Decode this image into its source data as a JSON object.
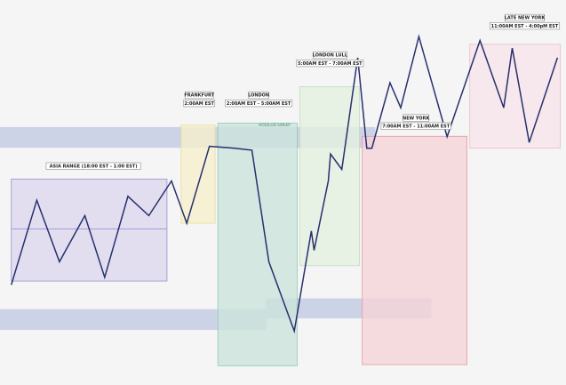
{
  "chart_data": {
    "type": "line",
    "title": "",
    "xlabel": "",
    "ylabel": "",
    "xlim": [
      0,
      100
    ],
    "ylim": [
      0,
      100
    ],
    "price_path": {
      "x": [
        2,
        6.5,
        10.5,
        15,
        18.5,
        22.6,
        26.3,
        30.3,
        33,
        37,
        41.5,
        44.5,
        47.5,
        52,
        55,
        55.5,
        58,
        58.4,
        60.4,
        63.2,
        64.8,
        65.7,
        68.9,
        70.8,
        74,
        79,
        84.8,
        89,
        90.5,
        93.5,
        98.5
      ],
      "y": [
        26,
        48,
        32,
        44,
        28,
        49,
        44,
        53,
        42,
        62,
        61.5,
        61,
        32,
        14,
        40,
        35,
        53,
        60,
        56,
        85,
        61.5,
        61.5,
        78.5,
        72,
        90.5,
        64.5,
        89.5,
        72,
        87.5,
        63,
        85
      ]
    },
    "range_lines": [
      {
        "name": "Asia range mid",
        "y": 40.5,
        "x_from": 2,
        "x_to": 29.5,
        "color": "#8f85d0"
      }
    ],
    "zones": [
      {
        "name": "asia",
        "x": [
          2,
          29.5
        ],
        "y": [
          27,
          53.5
        ],
        "fill": "#ddd8ee",
        "stroke": "#9a90d0"
      },
      {
        "name": "frankfurt",
        "x": [
          32,
          38
        ],
        "y": [
          42,
          67.5
        ],
        "fill": "#f6f0cc",
        "stroke": "#e9dc9a"
      },
      {
        "name": "london",
        "x": [
          38.5,
          52.5
        ],
        "y": [
          5,
          68
        ],
        "fill": "#cce4dc",
        "stroke": "#8fc8b6"
      },
      {
        "name": "london_lull",
        "x": [
          53,
          63.5
        ],
        "y": [
          31,
          77.5
        ],
        "fill": "#e4f0e0",
        "stroke": "#c2dcbc"
      },
      {
        "name": "new_york",
        "x": [
          64,
          82.5
        ],
        "y": [
          5.3,
          64.6
        ],
        "fill": "#f5d5d8",
        "stroke": "#e29aa2"
      },
      {
        "name": "late_new_york",
        "x": [
          83,
          99
        ],
        "y": [
          61.5,
          88.5
        ],
        "fill": "#f6e5ea",
        "stroke": "#e7bfcb"
      }
    ],
    "bands": [
      {
        "name": "upper liquidity",
        "x": [
          0,
          66.3
        ],
        "y": [
          61.6,
          67
        ],
        "fill": "#c6cde3"
      },
      {
        "name": "lower liquidity",
        "x": [
          0,
          47
        ],
        "y": [
          14.3,
          19.7
        ],
        "fill": "#c6cde3"
      },
      {
        "name": "lower liquidity extension",
        "x": [
          47,
          76.2
        ],
        "y": [
          17.3,
          22.5
        ],
        "fill": "#c6cde3"
      }
    ],
    "annotations": [
      {
        "name": "asia",
        "lines": [
          "ASIA RANGE (18:00 EST - 1:00 EST)"
        ],
        "x": 16.5,
        "y": 56
      },
      {
        "name": "frankfurt",
        "lines": [
          "FRANKFURT",
          "2:00AM EST"
        ],
        "x": 35.2,
        "y": 72.3
      },
      {
        "name": "london",
        "lines": [
          "LONDON",
          "2:00AM EST - 5:00AM EST"
        ],
        "x": 45.7,
        "y": 72.3
      },
      {
        "name": "london_lull",
        "lines": [
          "LONDON LULL",
          "5:00AM EST - 7:00AM EST"
        ],
        "x": 58.3,
        "y": 82.7
      },
      {
        "name": "new_york",
        "lines": [
          "NEW YORK",
          "7:00AM EST - 11:00AM EST"
        ],
        "x": 73.5,
        "y": 66.4
      },
      {
        "name": "late_new_york",
        "lines": [
          "LATE NEW YORK",
          "11:00AM EST - 4:00pM EST"
        ],
        "x": 92.7,
        "y": 92.4
      }
    ],
    "notes": [
      {
        "name": "hod_lod_sweep",
        "text": "HOD/LOD SWEEP",
        "x": 48.5,
        "y": 67.2,
        "color": "#3f8f6a"
      }
    ]
  }
}
